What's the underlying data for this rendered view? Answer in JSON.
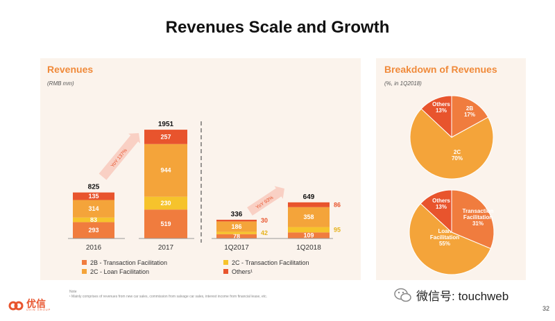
{
  "slide": {
    "title": "Revenues Scale and Growth",
    "page_number": "32",
    "footnote_label": "Note",
    "footnote_text": "¹ Mainly comprises of revenues from new car sales, commission from salvage car sales, interest income from financial lease, etc.",
    "logo_text": "优信",
    "logo_sub": "UXIN GROUP",
    "watermark": "微信号: touchweb"
  },
  "colors": {
    "accent": "#f08a3a",
    "2B": "#f07c3e",
    "2C_transaction": "#f6c32c",
    "2C_loan": "#f4a43a",
    "others": "#e8542d",
    "panel_bg": "#fbf3ec"
  },
  "chart_data": [
    {
      "type": "bar",
      "stacked": true,
      "title": "Revenues",
      "subtitle": "(RMB mm)",
      "categories": [
        "2016",
        "2017",
        "1Q2017",
        "1Q2018"
      ],
      "series": [
        {
          "name": "2B - Transaction Facilitation",
          "key": "2B",
          "values": [
            293,
            519,
            78,
            109
          ]
        },
        {
          "name": "2C - Transaction Facilitation",
          "key": "2C_transaction",
          "values": [
            83,
            230,
            42,
            95
          ]
        },
        {
          "name": "2C - Loan Facilitation",
          "key": "2C_loan",
          "values": [
            314,
            944,
            186,
            358
          ]
        },
        {
          "name": "Others¹",
          "key": "others",
          "values": [
            135,
            257,
            30,
            86
          ]
        }
      ],
      "totals": [
        825,
        1951,
        336,
        649
      ],
      "annotations": [
        {
          "text": "YoY 137%",
          "from": "2016",
          "to": "2017"
        },
        {
          "text": "YoY 93%",
          "from": "1Q2017",
          "to": "1Q2018"
        }
      ],
      "legend": [
        {
          "label": "2B - Transaction Facilitation",
          "key": "2B"
        },
        {
          "label": "2C - Transaction Facilitation",
          "key": "2C_transaction"
        },
        {
          "label": "2C - Loan Facilitation",
          "key": "2C_loan"
        },
        {
          "label": "Others¹",
          "key": "others"
        }
      ],
      "legend_position": "bottom",
      "grid": false
    },
    {
      "type": "pie",
      "title": "Breakdown of Revenues",
      "subtitle": "(%, in 1Q2018)",
      "slices": [
        {
          "label": "2B",
          "value": 17,
          "key": "2B_pie"
        },
        {
          "label": "2C",
          "value": 70,
          "key": "2C_loan"
        },
        {
          "label": "Others",
          "value": 13,
          "key": "others"
        }
      ]
    },
    {
      "type": "pie",
      "title": "",
      "slices": [
        {
          "label": "Transaction Facilitation",
          "value": 31,
          "key": "2B"
        },
        {
          "label": "Loan Facilitation",
          "value": 55,
          "key": "2C_loan"
        },
        {
          "label": "Others",
          "value": 13,
          "key": "others"
        }
      ]
    }
  ]
}
